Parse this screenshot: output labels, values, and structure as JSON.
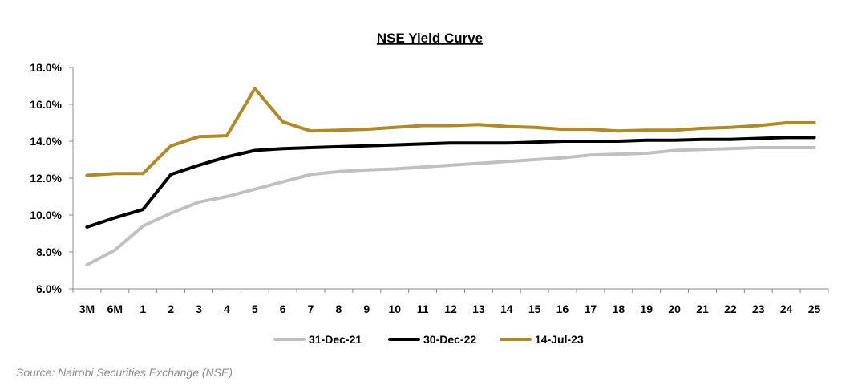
{
  "chart_data": {
    "type": "line",
    "title": "NSE Yield Curve",
    "xlabel": "",
    "ylabel": "",
    "categories": [
      "3M",
      "6M",
      "1",
      "2",
      "3",
      "4",
      "5",
      "6",
      "7",
      "8",
      "9",
      "10",
      "11",
      "12",
      "13",
      "14",
      "15",
      "16",
      "17",
      "18",
      "19",
      "20",
      "21",
      "22",
      "23",
      "24",
      "25"
    ],
    "y_ticks": [
      "6.0%",
      "8.0%",
      "10.0%",
      "12.0%",
      "14.0%",
      "16.0%",
      "18.0%"
    ],
    "ylim": [
      6,
      18
    ],
    "y_unit": "%",
    "grid": false,
    "legend_position": "bottom",
    "series": [
      {
        "name": "31-Dec-21",
        "color": "#c0c0c0",
        "values": [
          7.3,
          8.1,
          9.4,
          10.1,
          10.7,
          11.0,
          11.4,
          11.8,
          12.2,
          12.35,
          12.45,
          12.5,
          12.6,
          12.7,
          12.8,
          12.9,
          13.0,
          13.1,
          13.25,
          13.3,
          13.35,
          13.5,
          13.55,
          13.6,
          13.65,
          13.65,
          13.65
        ]
      },
      {
        "name": "30-Dec-22",
        "color": "#000000",
        "values": [
          9.35,
          9.85,
          10.3,
          12.2,
          12.7,
          13.15,
          13.5,
          13.6,
          13.65,
          13.7,
          13.75,
          13.8,
          13.85,
          13.9,
          13.9,
          13.9,
          13.95,
          14.0,
          14.0,
          14.0,
          14.05,
          14.05,
          14.1,
          14.1,
          14.15,
          14.2,
          14.2
        ]
      },
      {
        "name": "14-Jul-23",
        "color": "#b28a24",
        "values": [
          12.15,
          12.25,
          12.25,
          13.75,
          14.25,
          14.3,
          16.85,
          15.05,
          14.55,
          14.6,
          14.65,
          14.75,
          14.85,
          14.85,
          14.9,
          14.8,
          14.75,
          14.65,
          14.65,
          14.55,
          14.6,
          14.6,
          14.7,
          14.75,
          14.85,
          15.0,
          15.0
        ]
      }
    ]
  },
  "footer": {
    "source": "Source: Nairobi Securities Exchange (NSE)"
  }
}
